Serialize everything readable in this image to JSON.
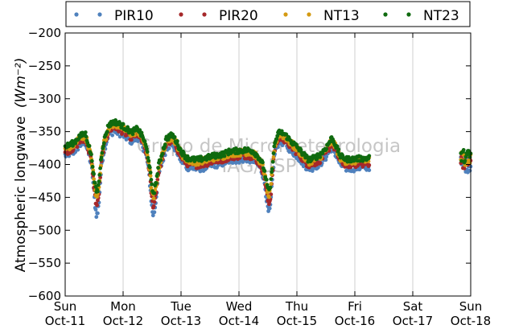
{
  "chart_data": {
    "type": "scatter",
    "ylabel": "Atmospheric longwave",
    "ylabel_unit": "(Wm⁻²)",
    "ylim": [
      -600,
      -200
    ],
    "yticks": [
      "−200",
      "−250",
      "−300",
      "−350",
      "−400",
      "−450",
      "−500",
      "−550",
      "−600"
    ],
    "ytick_values": [
      -200,
      -250,
      -300,
      -350,
      -400,
      -450,
      -500,
      -550,
      -600
    ],
    "xlim": [
      0,
      7
    ],
    "xticks": [
      {
        "day": "Sun",
        "date": "Oct-11"
      },
      {
        "day": "Mon",
        "date": "Oct-12"
      },
      {
        "day": "Tue",
        "date": "Oct-13"
      },
      {
        "day": "Wed",
        "date": "Oct-14"
      },
      {
        "day": "Thu",
        "date": "Oct-15"
      },
      {
        "day": "Fri",
        "date": "Oct-16"
      },
      {
        "day": "Sat",
        "date": "Oct-17"
      },
      {
        "day": "Sun",
        "date": "Oct-18"
      }
    ],
    "grid": "vertical",
    "legend_placement": "top",
    "watermark": [
      "Grupo de Micrometeorologia",
      "IAG/USP"
    ],
    "series": [
      {
        "name": "PIR10",
        "color": "#4f81bd",
        "offset": -8,
        "spike": 1.35,
        "noise": 6
      },
      {
        "name": "PIR20",
        "color": "#a6282a",
        "offset": -3,
        "spike": 1.15,
        "noise": 5
      },
      {
        "name": "NT13",
        "color": "#d49a12",
        "offset": 2,
        "spike": 1.0,
        "noise": 5
      },
      {
        "name": "NT23",
        "color": "#0f6a0f",
        "offset": 5,
        "spike": 0.9,
        "noise": 4
      }
    ],
    "base_curve": [
      [
        0.0,
        -378
      ],
      [
        0.15,
        -372
      ],
      [
        0.25,
        -362
      ],
      [
        0.35,
        -358
      ],
      [
        0.42,
        -380
      ],
      [
        0.5,
        -405
      ],
      [
        0.58,
        -398
      ],
      [
        0.66,
        -372
      ],
      [
        0.75,
        -345
      ],
      [
        0.85,
        -340
      ],
      [
        0.95,
        -344
      ],
      [
        1.05,
        -350
      ],
      [
        1.15,
        -356
      ],
      [
        1.25,
        -350
      ],
      [
        1.35,
        -365
      ],
      [
        1.42,
        -385
      ],
      [
        1.5,
        -405
      ],
      [
        1.58,
        -412
      ],
      [
        1.65,
        -395
      ],
      [
        1.75,
        -365
      ],
      [
        1.85,
        -360
      ],
      [
        1.92,
        -370
      ],
      [
        2.0,
        -385
      ],
      [
        2.1,
        -395
      ],
      [
        2.25,
        -398
      ],
      [
        2.4,
        -396
      ],
      [
        2.55,
        -392
      ],
      [
        2.7,
        -390
      ],
      [
        2.85,
        -385
      ],
      [
        3.0,
        -384
      ],
      [
        3.15,
        -383
      ],
      [
        3.25,
        -385
      ],
      [
        3.35,
        -395
      ],
      [
        3.45,
        -410
      ],
      [
        3.55,
        -402
      ],
      [
        3.62,
        -370
      ],
      [
        3.7,
        -355
      ],
      [
        3.8,
        -360
      ],
      [
        3.9,
        -370
      ],
      [
        4.0,
        -378
      ],
      [
        4.1,
        -388
      ],
      [
        4.2,
        -398
      ],
      [
        4.3,
        -395
      ],
      [
        4.4,
        -390
      ],
      [
        4.5,
        -380
      ],
      [
        4.6,
        -365
      ],
      [
        4.65,
        -372
      ],
      [
        4.75,
        -392
      ],
      [
        4.85,
        -397
      ],
      [
        4.95,
        -397
      ],
      [
        5.05,
        -396
      ],
      [
        5.15,
        -396
      ],
      [
        5.25,
        -395
      ]
    ],
    "dips": [
      {
        "x": 0.55,
        "depth": 50,
        "width": 0.06
      },
      {
        "x": 1.52,
        "depth": 45,
        "width": 0.06
      },
      {
        "x": 3.52,
        "depth": 45,
        "width": 0.06
      }
    ],
    "late_segment": {
      "x_start": 6.83,
      "x_end": 7.0,
      "y": -392
    }
  }
}
